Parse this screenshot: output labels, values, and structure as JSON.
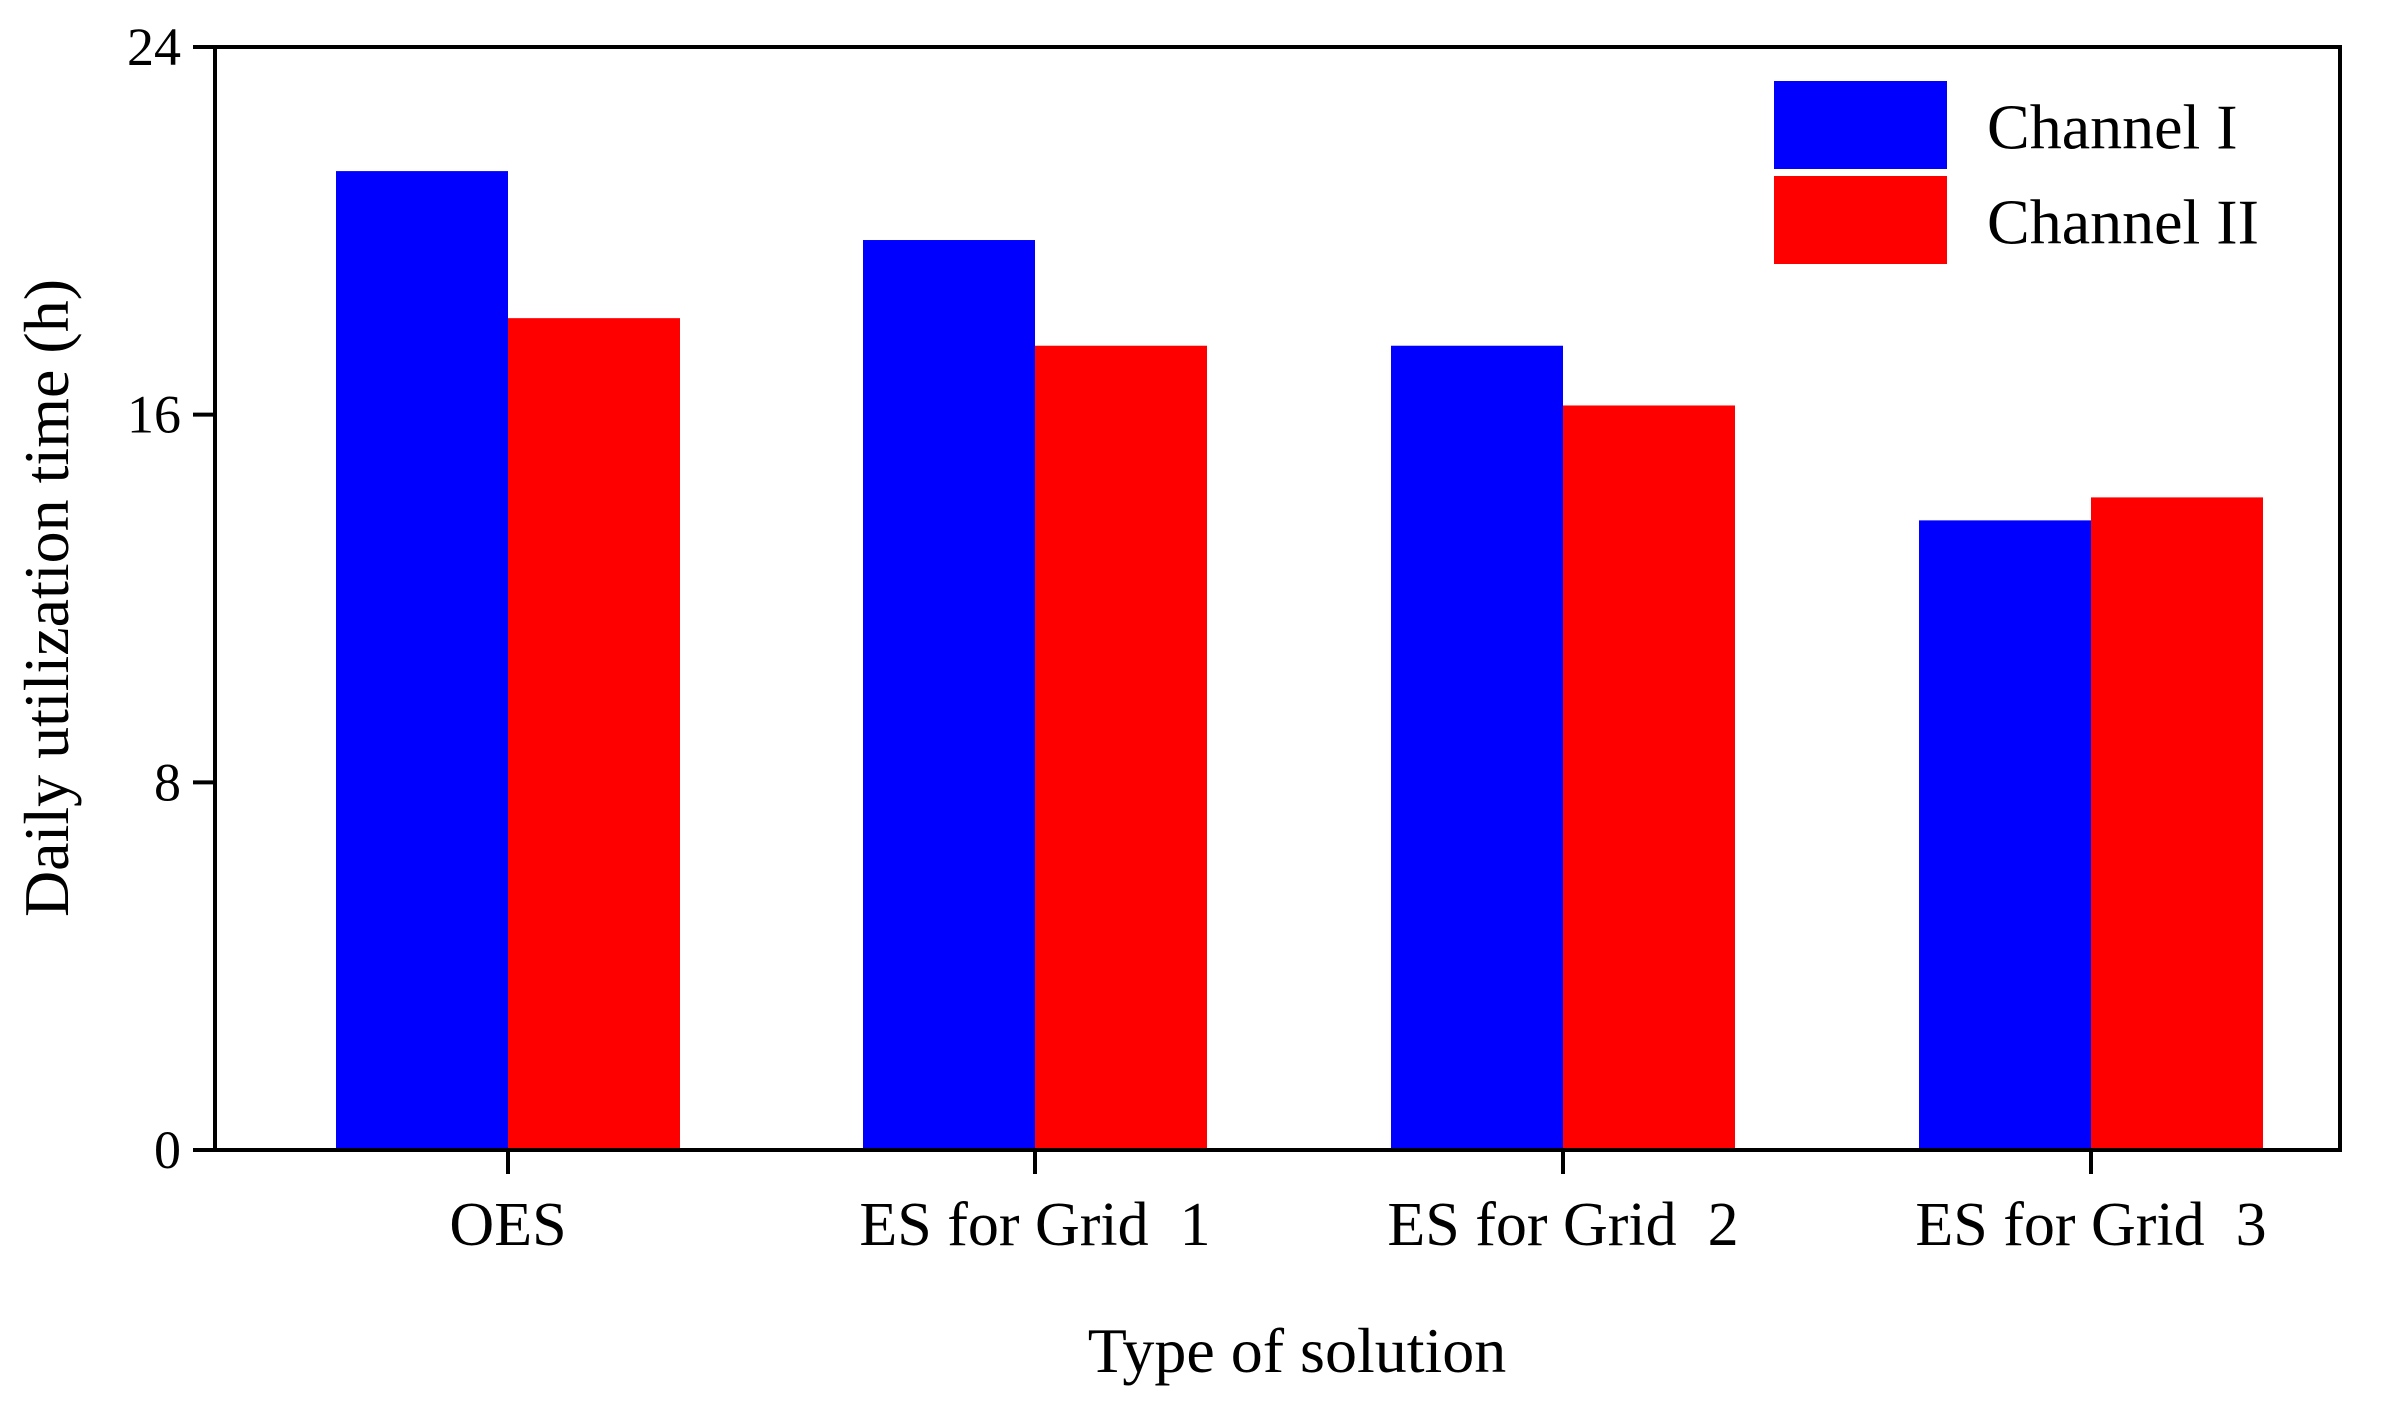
{
  "chart_data": {
    "type": "bar",
    "title": "",
    "xlabel": "Type of solution",
    "ylabel": "Daily utilization time (h)",
    "ylim": [
      0,
      24
    ],
    "yticks": [
      0,
      8,
      16,
      24
    ],
    "grid": false,
    "legend_position": "top-right",
    "categories": [
      "OES",
      "ES for Grid  1",
      "ES for Grid  2",
      "ES for Grid  3"
    ],
    "series": [
      {
        "name": "Channel I",
        "color": "#0000ff",
        "values": [
          21.3,
          19.8,
          17.5,
          13.7
        ]
      },
      {
        "name": "Channel II",
        "color": "#ff0000",
        "values": [
          18.1,
          17.5,
          16.2,
          14.2
        ]
      }
    ]
  }
}
